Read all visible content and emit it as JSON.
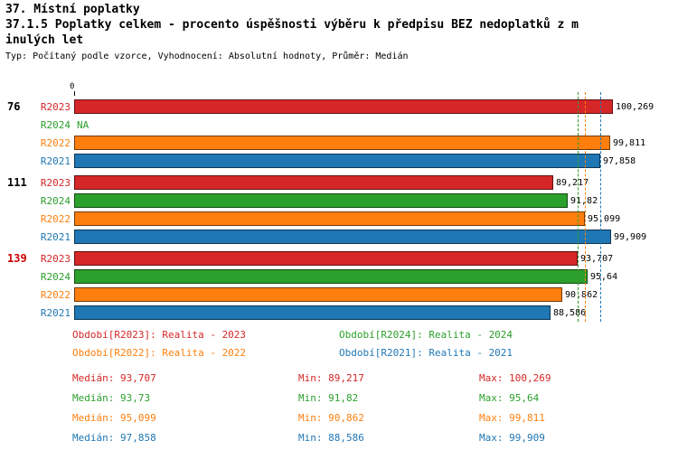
{
  "header": {
    "title": "37. Místní poplatky",
    "subtitle_line1": "37.1.5 Poplatky celkem - procento úspěšnosti výběru k předpisu BEZ nedoplatků z m",
    "subtitle_line2": "inulých let",
    "meta": "Typ: Počítaný podle vzorce, Vyhodnocení: Absolutní hodnoty, Průměr: Medián"
  },
  "colors": {
    "R2023": "#d62728",
    "R2024": "#2ca02c",
    "R2022": "#ff7f0e",
    "R2021": "#1f77b4",
    "alert": "#cc0000",
    "text": "#000000"
  },
  "chart_data": {
    "type": "bar",
    "orientation": "horizontal",
    "x_origin_label": "0",
    "xlim": [
      0,
      100.269
    ],
    "grid": false,
    "series_order": [
      "R2023",
      "R2024",
      "R2022",
      "R2021"
    ],
    "groups": [
      {
        "label": "76",
        "label_color": "#000000",
        "bars": [
          {
            "series": "R2023",
            "value": 100.269,
            "display": "100,269"
          },
          {
            "series": "R2024",
            "value": null,
            "display": "NA"
          },
          {
            "series": "R2022",
            "value": 99.811,
            "display": "99,811"
          },
          {
            "series": "R2021",
            "value": 97.858,
            "display": "97,858"
          }
        ]
      },
      {
        "label": "111",
        "label_color": "#000000",
        "bars": [
          {
            "series": "R2023",
            "value": 89.217,
            "display": "89,217"
          },
          {
            "series": "R2024",
            "value": 91.82,
            "display": "91,82"
          },
          {
            "series": "R2022",
            "value": 95.099,
            "display": "95,099"
          },
          {
            "series": "R2021",
            "value": 99.909,
            "display": "99,909"
          }
        ]
      },
      {
        "label": "139",
        "label_color": "#cc0000",
        "bars": [
          {
            "series": "R2023",
            "value": 93.707,
            "display": "93,707"
          },
          {
            "series": "R2024",
            "value": 95.64,
            "display": "95,64"
          },
          {
            "series": "R2022",
            "value": 90.862,
            "display": "90,862"
          },
          {
            "series": "R2021",
            "value": 88.586,
            "display": "88,586"
          }
        ]
      }
    ],
    "median_lines": [
      {
        "series": "R2023",
        "value": 93.707
      },
      {
        "series": "R2024",
        "value": 93.73
      },
      {
        "series": "R2022",
        "value": 95.099
      },
      {
        "series": "R2021",
        "value": 97.858
      }
    ]
  },
  "legend": {
    "items": [
      {
        "series": "R2023",
        "label": "Období[R2023]: Realita - 2023"
      },
      {
        "series": "R2024",
        "label": "Období[R2024]: Realita - 2024"
      },
      {
        "series": "R2022",
        "label": "Období[R2022]: Realita - 2022"
      },
      {
        "series": "R2021",
        "label": "Období[R2021]: Realita - 2021"
      }
    ]
  },
  "stats": {
    "rows": [
      {
        "series": "R2023",
        "median": "Medián: 93,707",
        "min": "Min: 89,217",
        "max": "Max: 100,269"
      },
      {
        "series": "R2024",
        "median": "Medián: 93,73",
        "min": "Min: 91,82",
        "max": "Max: 95,64"
      },
      {
        "series": "R2022",
        "median": "Medián: 95,099",
        "min": "Min: 90,862",
        "max": "Max: 99,811"
      },
      {
        "series": "R2021",
        "median": "Medián: 97,858",
        "min": "Min: 88,586",
        "max": "Max: 99,909"
      }
    ]
  }
}
